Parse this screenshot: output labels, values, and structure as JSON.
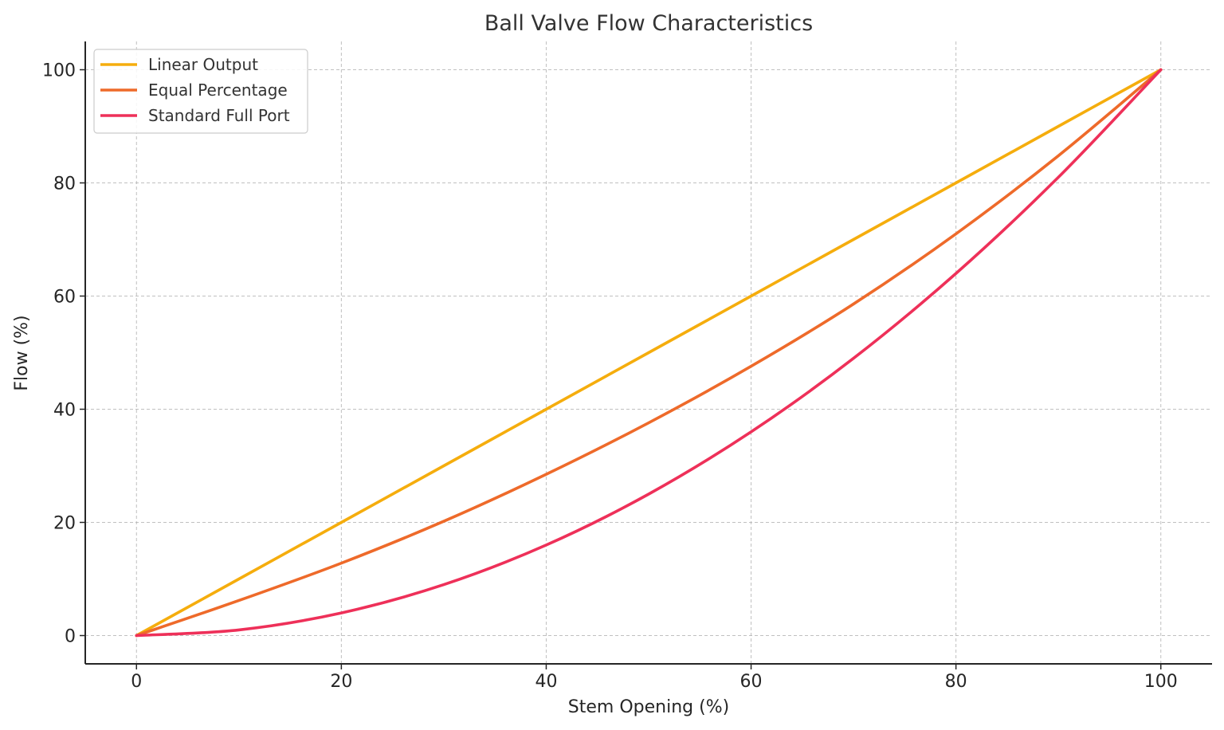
{
  "chart_data": {
    "type": "line",
    "title": "Ball Valve Flow Characteristics",
    "xlabel": "Stem Opening (%)",
    "ylabel": "Flow (%)",
    "xlim": [
      -5,
      105
    ],
    "ylim": [
      -5,
      105
    ],
    "xticks": [
      0,
      20,
      40,
      60,
      80,
      100
    ],
    "yticks": [
      0,
      20,
      40,
      60,
      80,
      100
    ],
    "x_tick_labels": [
      "0",
      "20",
      "40",
      "60",
      "80",
      "100"
    ],
    "y_tick_labels": [
      "0",
      "20",
      "40",
      "60",
      "80",
      "100"
    ],
    "grid": true,
    "legend_position": "top-left",
    "x": [
      0,
      10,
      20,
      30,
      40,
      50,
      60,
      70,
      80,
      90,
      100
    ],
    "series": [
      {
        "name": "Linear Output",
        "color": "#f5ad0d",
        "values": [
          0,
          10,
          20,
          30,
          40,
          50,
          60,
          70,
          80,
          90,
          100
        ]
      },
      {
        "name": "Equal Percentage",
        "color": "#ee6a2a",
        "values": [
          0,
          6.2,
          12.8,
          20.2,
          28.5,
          37.6,
          47.6,
          58.6,
          71,
          84.8,
          100
        ]
      },
      {
        "name": "Standard Full Port",
        "color": "#ee3059",
        "values": [
          0,
          1,
          4,
          9,
          16,
          25,
          36,
          49,
          64,
          81,
          100
        ]
      }
    ]
  }
}
